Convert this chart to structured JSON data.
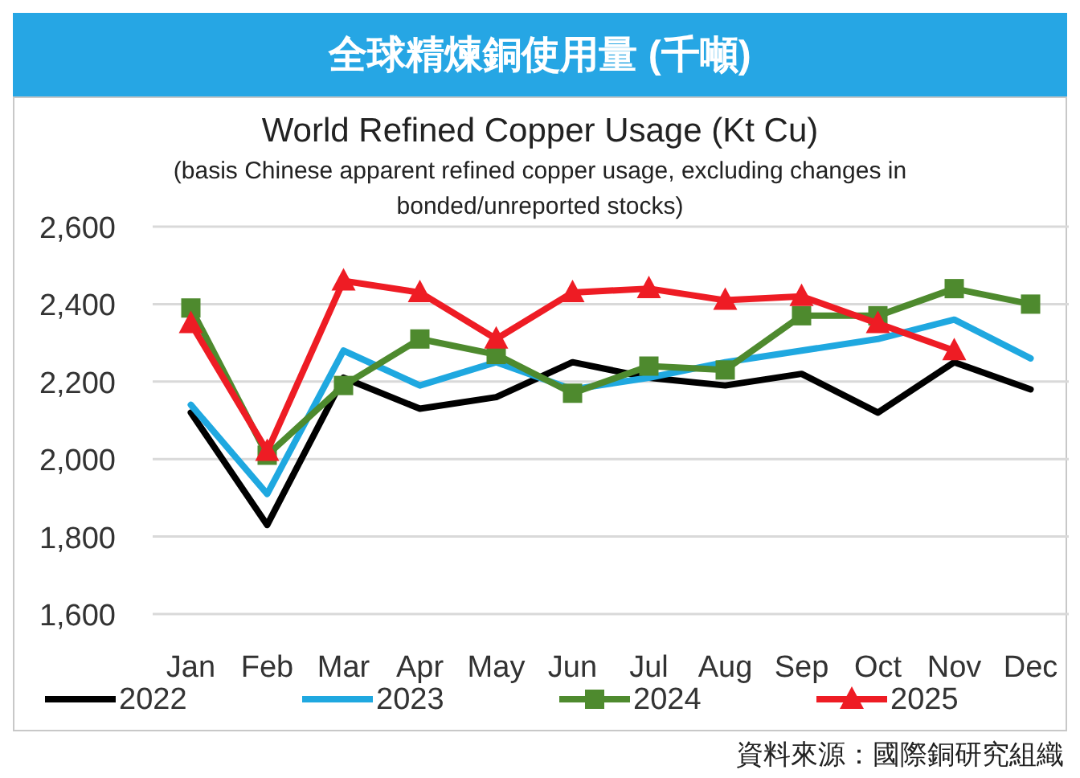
{
  "chart_data": {
    "type": "line",
    "title": "全球精煉銅使用量 (千噸)",
    "subtitle": "World Refined Copper Usage (Kt Cu)",
    "annotations": [
      "(basis Chinese apparent refined copper usage, excluding changes in bonded/unreported stocks)",
      "資料來源：國際銅研究組織"
    ],
    "categories": [
      "Jan",
      "Feb",
      "Mar",
      "Apr",
      "May",
      "Jun",
      "Jul",
      "Aug",
      "Sep",
      "Oct",
      "Nov",
      "Dec"
    ],
    "series": [
      {
        "name": "2022",
        "color": "#000000",
        "marker": "none",
        "values": [
          2120,
          1830,
          2210,
          2130,
          2160,
          2250,
          2210,
          2190,
          2220,
          2120,
          2250,
          2180
        ]
      },
      {
        "name": "2023",
        "color": "#1fa8e0",
        "marker": "none",
        "values": [
          2140,
          1910,
          2280,
          2190,
          2250,
          2180,
          2210,
          2250,
          2280,
          2310,
          2360,
          2260
        ]
      },
      {
        "name": "2024",
        "color": "#4e8a2e",
        "marker": "square",
        "values": [
          2390,
          2010,
          2190,
          2310,
          2270,
          2170,
          2240,
          2230,
          2370,
          2370,
          2440,
          2400
        ]
      },
      {
        "name": "2025",
        "color": "#ee1c24",
        "marker": "triangle",
        "values": [
          2350,
          2020,
          2460,
          2430,
          2310,
          2430,
          2440,
          2410,
          2420,
          2350,
          2280,
          null
        ]
      }
    ],
    "ylim": [
      1600,
      2600
    ],
    "yticks": [
      {
        "value": 1600,
        "label": "1,600"
      },
      {
        "value": 1800,
        "label": "1,800"
      },
      {
        "value": 2000,
        "label": "2,000"
      },
      {
        "value": 2200,
        "label": "2,200"
      },
      {
        "value": 2400,
        "label": "2,400"
      },
      {
        "value": 2600,
        "label": "2,600"
      }
    ],
    "grid": "y",
    "legend": "bottom",
    "line_style": "solid"
  }
}
